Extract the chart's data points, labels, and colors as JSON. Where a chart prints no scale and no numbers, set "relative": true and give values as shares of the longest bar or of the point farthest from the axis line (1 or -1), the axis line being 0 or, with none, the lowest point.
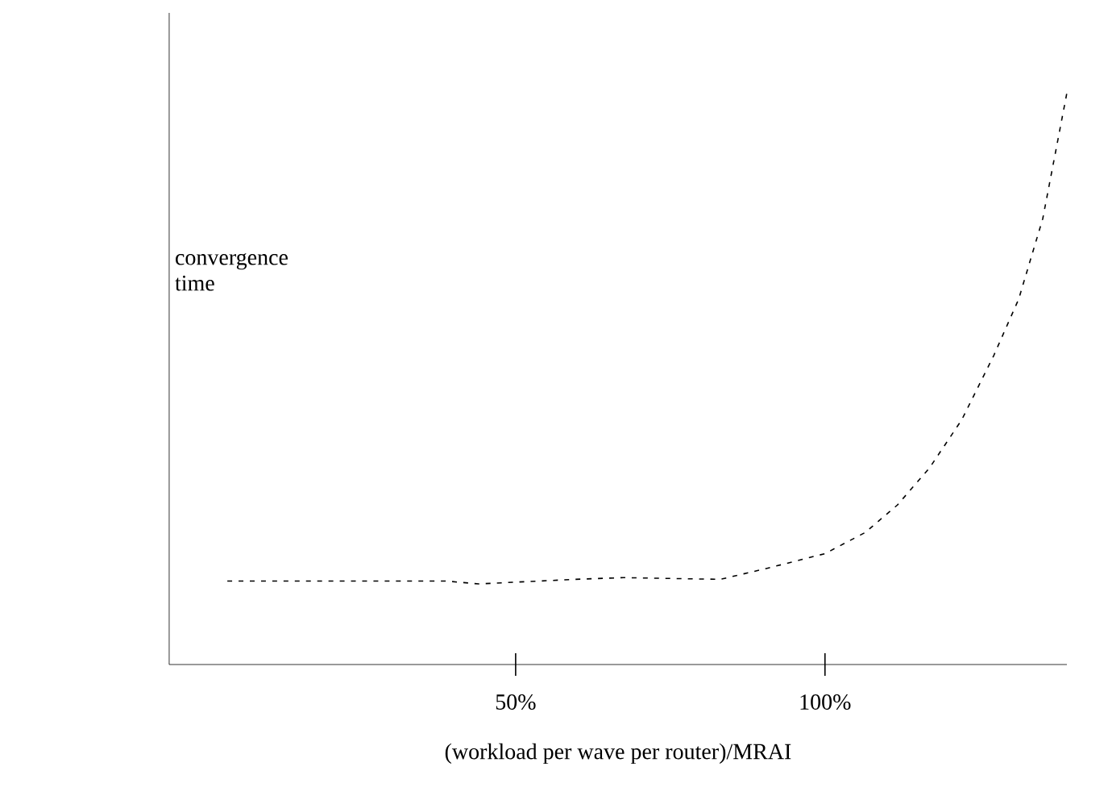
{
  "chart_data": {
    "type": "line",
    "relative": true,
    "ylabel": "convergence time",
    "xlabel": "(workload per wave per router)/MRAI",
    "x": [
      3.4,
      38.8,
      44.0,
      59.6,
      67.4,
      83.1,
      90.9,
      100,
      106.5,
      111.7,
      116.9,
      122.1,
      127.3,
      131.3,
      135.2,
      139.1
    ],
    "series": [
      {
        "color": "#000000",
        "values": [
          0.146,
          0.146,
          0.141,
          0.149,
          0.152,
          0.149,
          0.169,
          0.194,
          0.231,
          0.279,
          0.344,
          0.428,
          0.541,
          0.639,
          0.78,
          1
        ]
      }
    ],
    "xlim": [
      -6,
      139.1
    ],
    "xticks": [
      {
        "value": 50,
        "label": "50%"
      },
      {
        "value": 100,
        "label": "100%"
      }
    ],
    "line_style": "dashed"
  }
}
